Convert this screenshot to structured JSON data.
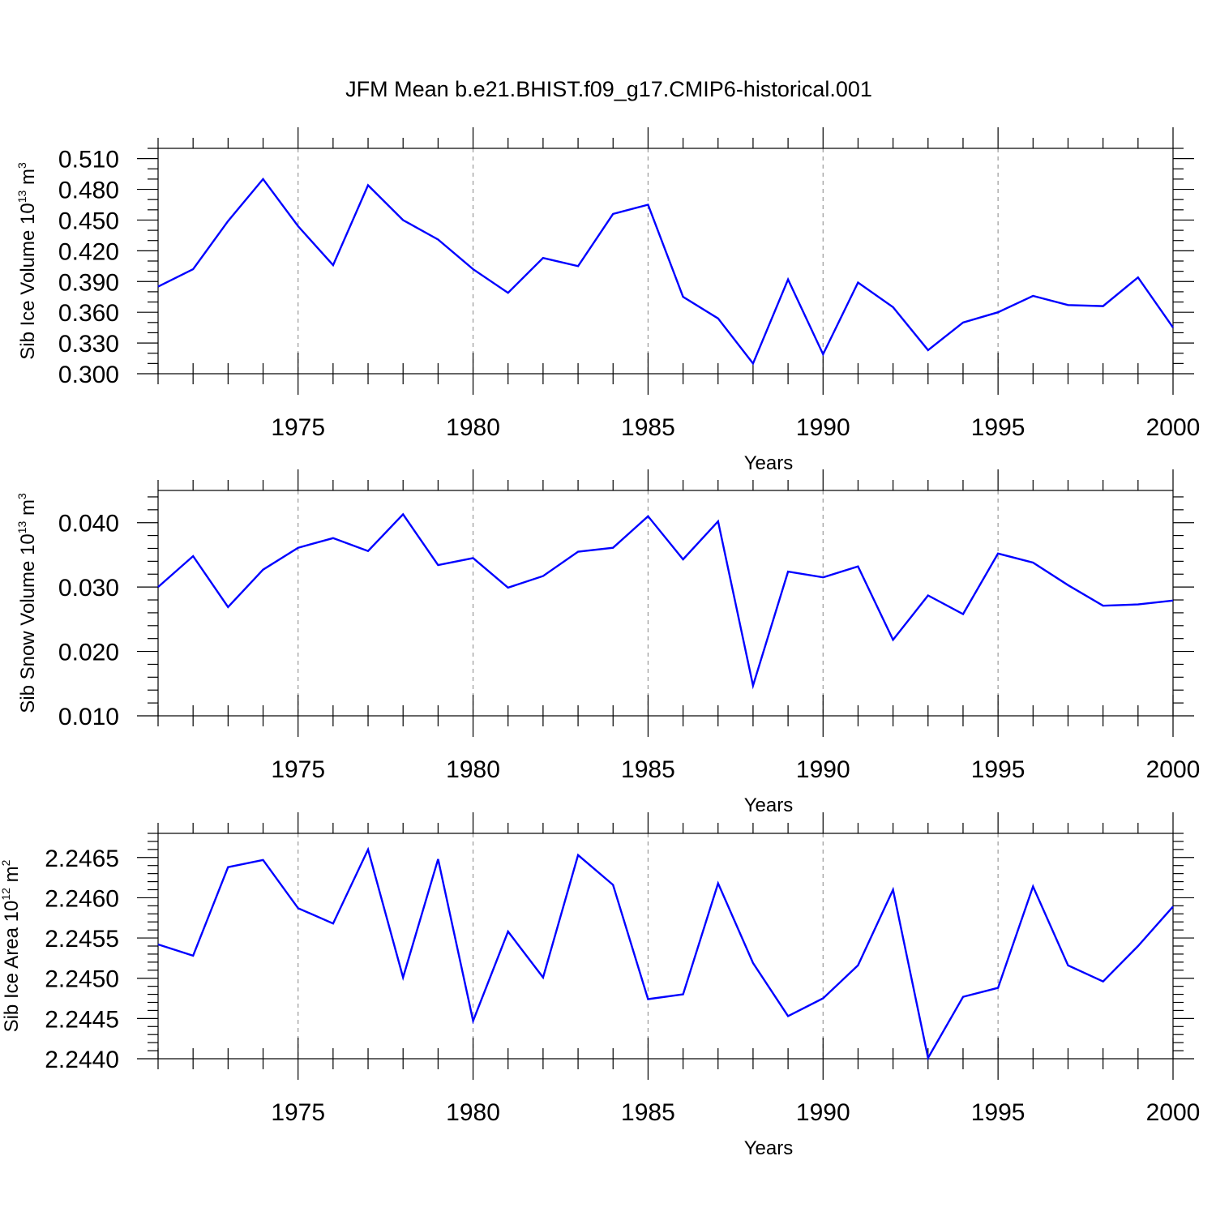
{
  "title": "JFM Mean b.e21.BHIST.f09_g17.CMIP6-historical.001",
  "chart_data": [
    {
      "type": "line",
      "ylabel_main": "Sib Ice Volume 10",
      "ylabel_exp": "13",
      "ylabel_unit": " m",
      "ylabel_unit_exp": "3",
      "xlabel": "Years",
      "xlim": [
        1971,
        2000
      ],
      "ylim": [
        0.3,
        0.52
      ],
      "yticks": [
        0.3,
        0.33,
        0.36,
        0.39,
        0.42,
        0.45,
        0.48,
        0.51
      ],
      "ytick_labels": [
        "0.300",
        "0.330",
        "0.360",
        "0.390",
        "0.420",
        "0.450",
        "0.480",
        "0.510"
      ],
      "yminor_step": 0.01,
      "xticks": [
        1975,
        1980,
        1985,
        1990,
        1995,
        2000
      ],
      "xtick_labels": [
        "1975",
        "1980",
        "1985",
        "1990",
        "1995",
        "2000"
      ],
      "grid": "dashed vertical at major x ticks",
      "x": [
        1971,
        1972,
        1973,
        1974,
        1975,
        1976,
        1977,
        1978,
        1979,
        1980,
        1981,
        1982,
        1983,
        1984,
        1985,
        1986,
        1987,
        1988,
        1989,
        1990,
        1991,
        1992,
        1993,
        1994,
        1995,
        1996,
        1997,
        1998,
        1999,
        2000
      ],
      "values": [
        0.385,
        0.402,
        0.449,
        0.49,
        0.444,
        0.406,
        0.484,
        0.45,
        0.431,
        0.402,
        0.379,
        0.413,
        0.405,
        0.456,
        0.465,
        0.375,
        0.354,
        0.31,
        0.392,
        0.319,
        0.389,
        0.365,
        0.323,
        0.35,
        0.36,
        0.376,
        0.367,
        0.366,
        0.394,
        0.345
      ]
    },
    {
      "type": "line",
      "ylabel_main": "Sib Snow Volume 10",
      "ylabel_exp": "13",
      "ylabel_unit": " m",
      "ylabel_unit_exp": "3",
      "xlabel": "Years",
      "xlim": [
        1971,
        2000
      ],
      "ylim": [
        0.01,
        0.045
      ],
      "yticks": [
        0.01,
        0.02,
        0.03,
        0.04
      ],
      "ytick_labels": [
        "0.010",
        "0.020",
        "0.030",
        "0.040"
      ],
      "yminor_step": 0.002,
      "xticks": [
        1975,
        1980,
        1985,
        1990,
        1995,
        2000
      ],
      "xtick_labels": [
        "1975",
        "1980",
        "1985",
        "1990",
        "1995",
        "2000"
      ],
      "grid": "dashed vertical at major x ticks",
      "x": [
        1971,
        1972,
        1973,
        1974,
        1975,
        1976,
        1977,
        1978,
        1979,
        1980,
        1981,
        1982,
        1983,
        1984,
        1985,
        1986,
        1987,
        1988,
        1989,
        1990,
        1991,
        1992,
        1993,
        1994,
        1995,
        1996,
        1997,
        1998,
        1999,
        2000
      ],
      "values": [
        0.03,
        0.0348,
        0.0269,
        0.0327,
        0.0361,
        0.0376,
        0.0356,
        0.0413,
        0.0334,
        0.0345,
        0.0299,
        0.0317,
        0.0355,
        0.0361,
        0.041,
        0.0343,
        0.0402,
        0.0147,
        0.0324,
        0.0315,
        0.0332,
        0.0218,
        0.0287,
        0.0258,
        0.0352,
        0.0338,
        0.0303,
        0.0271,
        0.0273,
        0.0279
      ]
    },
    {
      "type": "line",
      "ylabel_main": "Sib Ice Area 10",
      "ylabel_exp": "12",
      "ylabel_unit": " m",
      "ylabel_unit_exp": "2",
      "xlabel": "Years",
      "xlim": [
        1971,
        2000
      ],
      "ylim": [
        2.244,
        2.2468
      ],
      "yticks": [
        2.244,
        2.2445,
        2.245,
        2.2455,
        2.246,
        2.2465
      ],
      "ytick_labels": [
        "2.2440",
        "2.2445",
        "2.2450",
        "2.2455",
        "2.2460",
        "2.2465"
      ],
      "yminor_step": 0.0001,
      "xticks": [
        1975,
        1980,
        1985,
        1990,
        1995,
        2000
      ],
      "xtick_labels": [
        "1975",
        "1980",
        "1985",
        "1990",
        "1995",
        "2000"
      ],
      "grid": "dashed vertical at major x ticks",
      "x": [
        1971,
        1972,
        1973,
        1974,
        1975,
        1976,
        1977,
        1978,
        1979,
        1980,
        1981,
        1982,
        1983,
        1984,
        1985,
        1986,
        1987,
        1988,
        1989,
        1990,
        1991,
        1992,
        1993,
        1994,
        1995,
        1996,
        1997,
        1998,
        1999,
        2000
      ],
      "values": [
        2.24542,
        2.24528,
        2.24638,
        2.24647,
        2.24587,
        2.24568,
        2.2466,
        2.24501,
        2.24648,
        2.24447,
        2.24558,
        2.24501,
        2.24653,
        2.24616,
        2.24474,
        2.2448,
        2.24618,
        2.24519,
        2.24453,
        2.24475,
        2.24516,
        2.2461,
        2.24401,
        2.24477,
        2.24488,
        2.24614,
        2.24516,
        2.24496,
        2.2454,
        2.24589
      ]
    }
  ]
}
